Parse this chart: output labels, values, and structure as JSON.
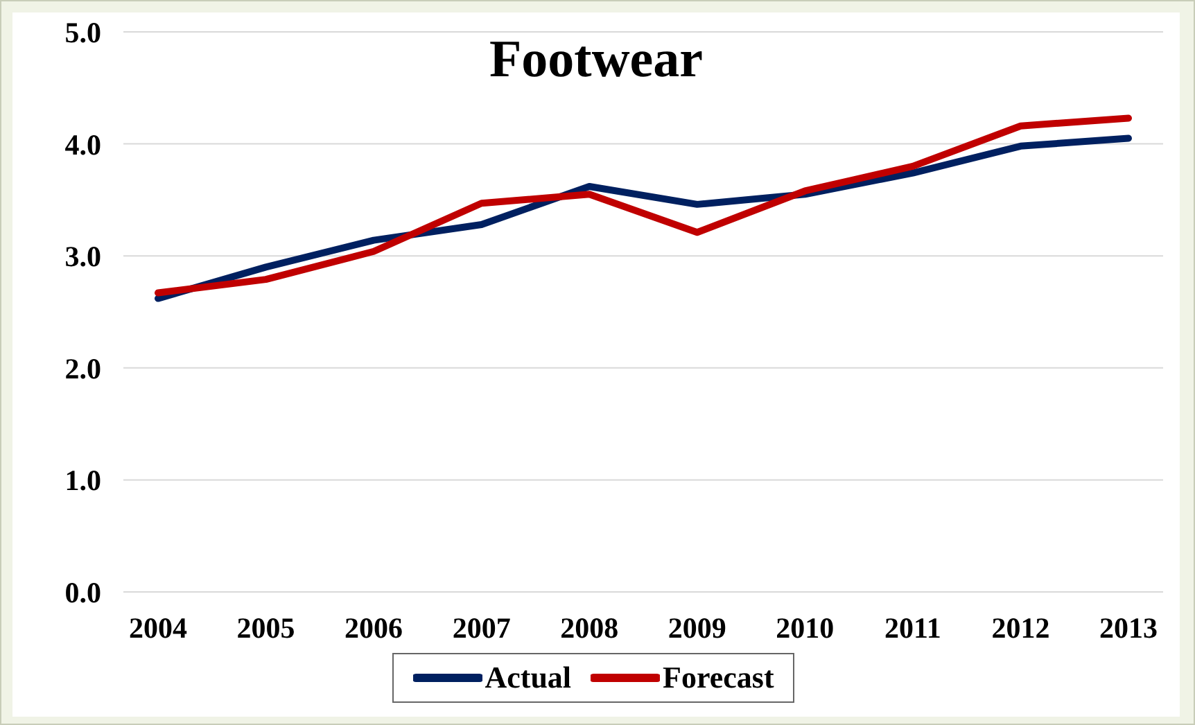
{
  "chart_data": {
    "type": "line",
    "title": "Footwear",
    "categories": [
      "2004",
      "2005",
      "2006",
      "2007",
      "2008",
      "2009",
      "2010",
      "2011",
      "2012",
      "2013"
    ],
    "series": [
      {
        "name": "Actual",
        "color": "#002060",
        "values": [
          2.62,
          2.9,
          3.14,
          3.28,
          3.62,
          3.46,
          3.55,
          3.74,
          3.98,
          4.05
        ]
      },
      {
        "name": "Forecast",
        "color": "#c00000",
        "values": [
          2.67,
          2.79,
          3.04,
          3.47,
          3.55,
          3.21,
          3.58,
          3.8,
          4.16,
          4.23
        ]
      }
    ],
    "ylim": [
      0,
      5
    ],
    "yticks": [
      {
        "value": 0,
        "label": "0.0"
      },
      {
        "value": 1,
        "label": "1.0"
      },
      {
        "value": 2,
        "label": "2.0"
      },
      {
        "value": 3,
        "label": "3.0"
      },
      {
        "value": 4,
        "label": "4.0"
      },
      {
        "value": 5,
        "label": "5.0"
      }
    ],
    "grid": "y",
    "legend": "bottom",
    "marker": "none",
    "line_style": "solid"
  }
}
